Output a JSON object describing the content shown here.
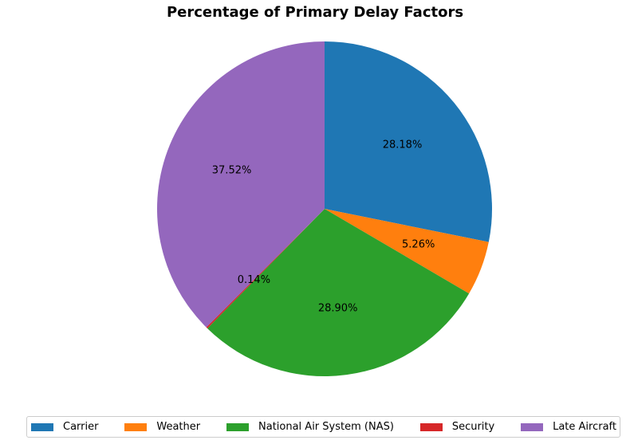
{
  "chart_data": {
    "type": "pie",
    "title": "Percentage of Primary Delay Factors",
    "categories": [
      "Carrier",
      "Weather",
      "National Air System (NAS)",
      "Security",
      "Late Aircraft"
    ],
    "values": [
      28.18,
      5.26,
      28.9,
      0.14,
      37.52
    ],
    "labels": [
      "28.18%",
      "5.26%",
      "28.90%",
      "0.14%",
      "37.52%"
    ],
    "colors": [
      "#1f77b4",
      "#ff7f0e",
      "#2ca02c",
      "#d62728",
      "#9467bd"
    ],
    "start_angle_deg": 90,
    "direction": "clockwise",
    "legend_position": "bottom"
  }
}
